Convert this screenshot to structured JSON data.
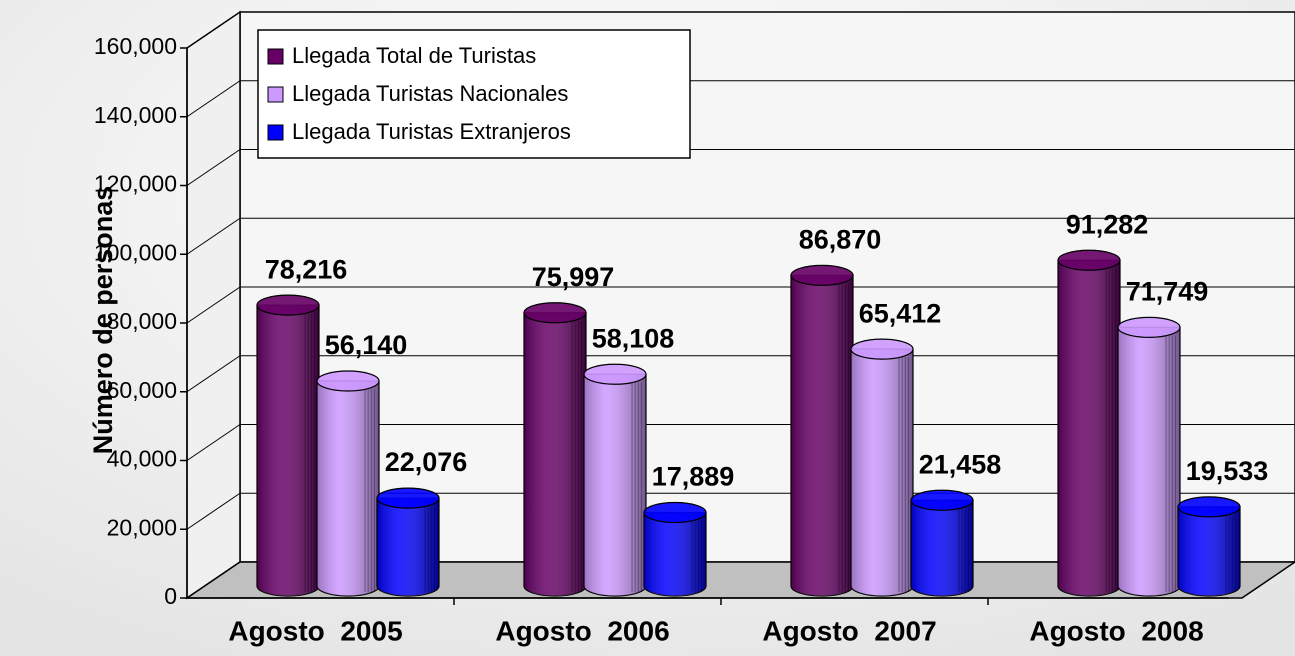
{
  "chart_data": {
    "type": "bar3d",
    "y_label": "Número de personas",
    "categories": [
      "Agosto  2005",
      "Agosto  2006",
      "Agosto  2007",
      "Agosto  2008"
    ],
    "series": [
      {
        "name": "Llegada Total de Turistas",
        "color": "#660066",
        "values": [
          78216,
          75997,
          86870,
          91282
        ],
        "value_labels": [
          "78,216",
          "75,997",
          "86,870",
          "91,282"
        ]
      },
      {
        "name": "Llegada Turistas Nacionales",
        "color": "#cc99ff",
        "values": [
          56140,
          58108,
          65412,
          71749
        ],
        "value_labels": [
          "56,140",
          "58,108",
          "65,412",
          "71,749"
        ]
      },
      {
        "name": "Llegada Turistas Extranjeros",
        "color": "#0000ff",
        "values": [
          22076,
          17889,
          21458,
          19533
        ],
        "value_labels": [
          "22,076",
          "17,889",
          "21,458",
          "19,533"
        ]
      }
    ],
    "ylim": [
      0,
      160000
    ],
    "yticks": [
      0,
      {
        "value": 20000,
        "label": "20,000"
      },
      {
        "value": 40000,
        "label": "40,000"
      },
      {
        "value": 60000,
        "label": "60,000"
      },
      {
        "value": 80000,
        "label": "80,000"
      },
      {
        "value": 100000,
        "label": "100,000"
      },
      {
        "value": 120000,
        "label": "120,000"
      },
      {
        "value": 140000,
        "label": "140,000"
      },
      {
        "value": 160000,
        "label": "160,000"
      }
    ],
    "grid": true,
    "legend": "top-left"
  }
}
